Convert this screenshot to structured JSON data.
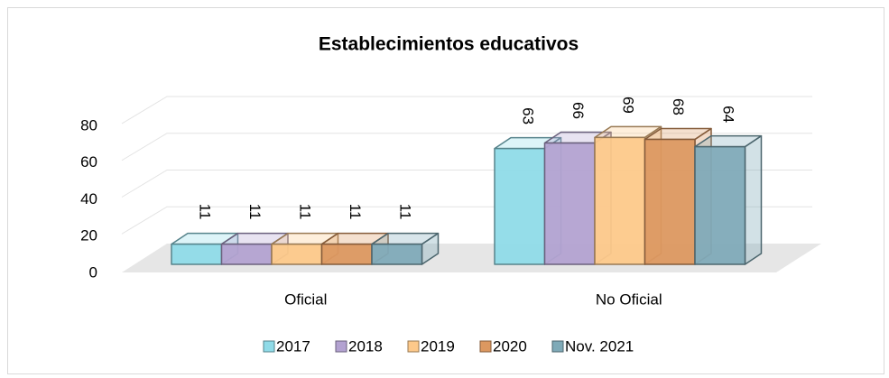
{
  "chart_data": {
    "type": "bar3d",
    "title": "Establecimientos educativos",
    "categories": [
      "Oficial",
      "No Oficial"
    ],
    "series": [
      {
        "name": "2017",
        "color": "#8fdbe8",
        "values": [
          11,
          63
        ]
      },
      {
        "name": "2018",
        "color": "#b3a2d1",
        "values": [
          11,
          66
        ]
      },
      {
        "name": "2019",
        "color": "#fdc98a",
        "values": [
          11,
          69
        ]
      },
      {
        "name": "2020",
        "color": "#dc9860",
        "values": [
          11,
          68
        ]
      },
      {
        "name": "Nov. 2021",
        "color": "#7faab8",
        "values": [
          11,
          64
        ]
      }
    ],
    "ylim": [
      0,
      80
    ],
    "yticks": [
      0,
      20,
      40,
      60,
      80
    ],
    "grid": true,
    "legend": "bottom"
  }
}
